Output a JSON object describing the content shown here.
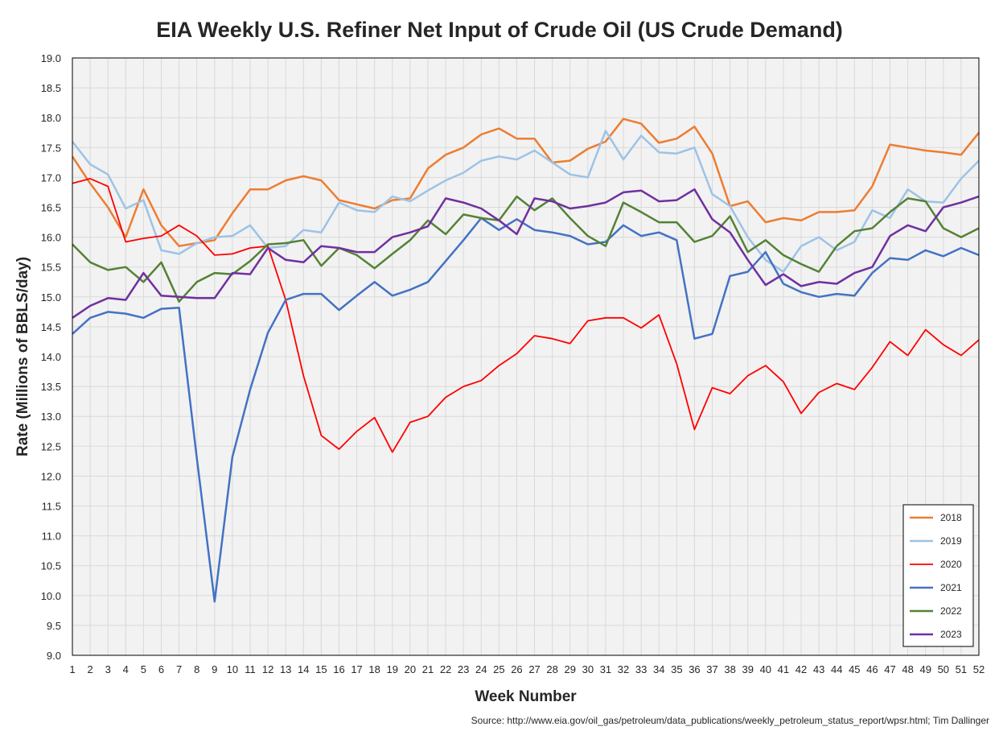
{
  "chart_data": {
    "type": "line",
    "title": "EIA Weekly U.S. Refiner Net Input of Crude Oil (US Crude Demand)",
    "xlabel": "Week Number",
    "ylabel": "Rate (Millions of BBLS/day)",
    "source": "Source: http://www.eia.gov/oil_gas/petroleum/data_publications/weekly_petroleum_status_report/wpsr.html; Tim Dallinger",
    "xlim": [
      1,
      52
    ],
    "ylim": [
      9.0,
      19.0
    ],
    "ytick_step": 0.5,
    "grid": true,
    "legend_position": "bottom-right",
    "x": [
      1,
      2,
      3,
      4,
      5,
      6,
      7,
      8,
      9,
      10,
      11,
      12,
      13,
      14,
      15,
      16,
      17,
      18,
      19,
      20,
      21,
      22,
      23,
      24,
      25,
      26,
      27,
      28,
      29,
      30,
      31,
      32,
      33,
      34,
      35,
      36,
      37,
      38,
      39,
      40,
      41,
      42,
      43,
      44,
      45,
      46,
      47,
      48,
      49,
      50,
      51,
      52
    ],
    "series": [
      {
        "name": "2018",
        "color": "#ed7d31",
        "values": [
          17.35,
          16.9,
          16.5,
          16.0,
          16.8,
          16.2,
          15.85,
          15.9,
          15.95,
          16.4,
          16.8,
          16.8,
          16.95,
          17.02,
          16.95,
          16.62,
          16.55,
          16.48,
          16.62,
          16.65,
          17.15,
          17.38,
          17.5,
          17.72,
          17.82,
          17.65,
          17.65,
          17.25,
          17.28,
          17.48,
          17.6,
          17.98,
          17.9,
          17.58,
          17.65,
          17.85,
          17.4,
          16.52,
          16.6,
          16.25,
          16.32,
          16.28,
          16.42,
          16.42,
          16.45,
          16.85,
          17.55,
          17.5,
          17.45,
          17.42,
          17.38,
          17.75
        ]
      },
      {
        "name": "2019",
        "color": "#9dc3e6",
        "values": [
          17.6,
          17.22,
          17.05,
          16.48,
          16.62,
          15.78,
          15.72,
          15.9,
          16.0,
          16.02,
          16.2,
          15.82,
          15.85,
          16.12,
          16.08,
          16.58,
          16.45,
          16.42,
          16.68,
          16.6,
          16.78,
          16.95,
          17.08,
          17.28,
          17.35,
          17.3,
          17.45,
          17.25,
          17.05,
          17.0,
          17.78,
          17.3,
          17.7,
          17.42,
          17.4,
          17.5,
          16.72,
          16.52,
          16.0,
          15.62,
          15.42,
          15.85,
          16.0,
          15.78,
          15.92,
          16.45,
          16.32,
          16.8,
          16.6,
          16.58,
          16.98,
          17.28
        ]
      },
      {
        "name": "2020",
        "color": "#ff0000",
        "values": [
          16.9,
          16.98,
          16.85,
          15.92,
          15.98,
          16.02,
          16.2,
          16.02,
          15.7,
          15.72,
          15.82,
          15.85,
          14.95,
          13.68,
          12.68,
          12.45,
          12.75,
          12.98,
          12.4,
          12.9,
          13.0,
          13.32,
          13.5,
          13.6,
          13.85,
          14.05,
          14.35,
          14.3,
          14.22,
          14.6,
          14.65,
          14.65,
          14.48,
          14.7,
          13.88,
          12.78,
          13.48,
          13.38,
          13.68,
          13.85,
          13.58,
          13.05,
          13.4,
          13.55,
          13.45,
          13.82,
          14.25,
          14.02,
          14.45,
          14.2,
          14.02,
          14.28
        ]
      },
      {
        "name": "2021",
        "color": "#4472c4",
        "values": [
          14.38,
          14.65,
          14.75,
          14.72,
          14.65,
          14.8,
          14.82,
          12.3,
          9.9,
          12.32,
          13.45,
          14.4,
          14.95,
          15.05,
          15.05,
          14.78,
          15.02,
          15.25,
          15.02,
          15.12,
          15.25,
          15.6,
          15.95,
          16.32,
          16.12,
          16.3,
          16.12,
          16.08,
          16.02,
          15.88,
          15.92,
          16.2,
          16.02,
          16.08,
          15.95,
          14.3,
          14.38,
          15.35,
          15.42,
          15.75,
          15.22,
          15.08,
          15.0,
          15.05,
          15.02,
          15.4,
          15.65,
          15.62,
          15.78,
          15.68,
          15.82,
          15.7
        ]
      },
      {
        "name": "2022",
        "color": "#548235",
        "values": [
          15.88,
          15.58,
          15.45,
          15.5,
          15.25,
          15.58,
          14.92,
          15.25,
          15.4,
          15.38,
          15.6,
          15.88,
          15.9,
          15.95,
          15.52,
          15.82,
          15.7,
          15.48,
          15.72,
          15.95,
          16.28,
          16.05,
          16.38,
          16.32,
          16.28,
          16.68,
          16.45,
          16.65,
          16.32,
          16.02,
          15.85,
          16.58,
          16.42,
          16.25,
          16.25,
          15.92,
          16.02,
          16.35,
          15.75,
          15.95,
          15.7,
          15.55,
          15.42,
          15.85,
          16.1,
          16.15,
          16.42,
          16.65,
          16.6,
          16.15,
          16.0,
          16.15
        ]
      },
      {
        "name": "2023",
        "color": "#7030a0",
        "values": [
          14.65,
          14.85,
          14.98,
          14.95,
          15.4,
          15.02,
          15.0,
          14.98,
          14.98,
          15.4,
          15.38,
          15.82,
          15.62,
          15.58,
          15.85,
          15.82,
          15.75,
          15.75,
          16.0,
          16.08,
          16.18,
          16.65,
          16.58,
          16.48,
          16.28,
          16.05,
          16.65,
          16.6,
          16.48,
          16.52,
          16.58,
          16.75,
          16.78,
          16.6,
          16.62,
          16.8,
          16.3,
          16.08,
          15.62,
          15.2,
          15.38,
          15.18,
          15.25,
          15.22,
          15.4,
          15.5,
          16.02,
          16.2,
          16.1,
          16.5,
          16.58,
          16.68
        ]
      }
    ]
  }
}
